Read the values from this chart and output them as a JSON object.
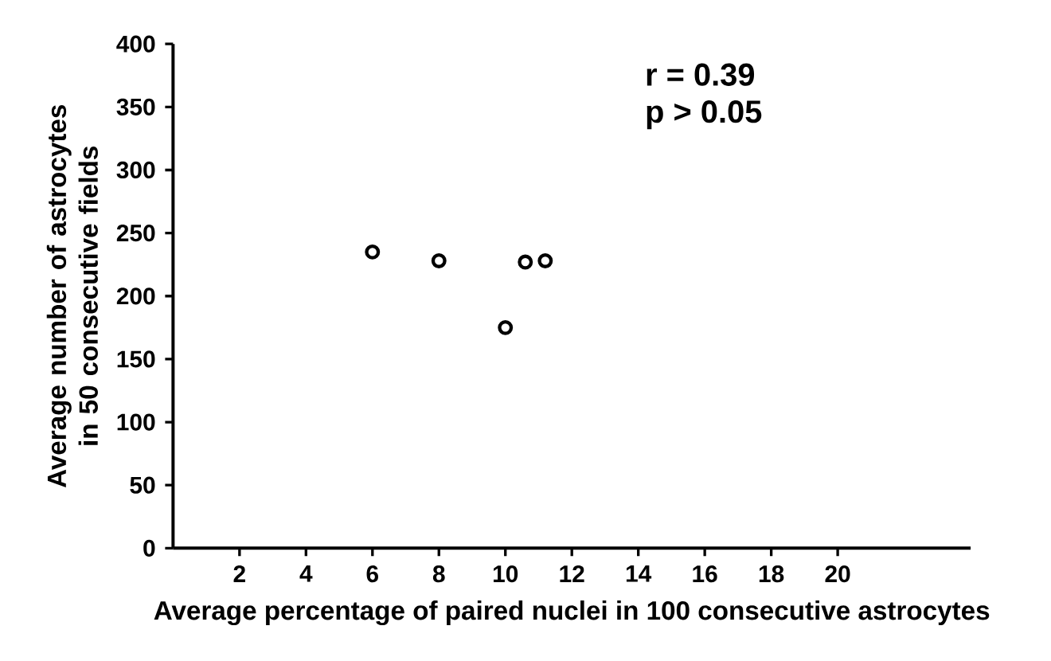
{
  "chart_data": {
    "type": "scatter",
    "xlabel": "Average percentage of paired nuclei in 100 consecutive astrocytes",
    "ylabel": "Average number of astrocytes in 50 consecutive fields",
    "x": [
      6,
      8,
      10,
      10.6,
      11.2
    ],
    "values": [
      235,
      228,
      175,
      227,
      228
    ],
    "color": "#000000",
    "marker": "circle",
    "xlim": [
      0,
      24
    ],
    "ylim": [
      0,
      400
    ],
    "xticks": [
      2,
      4,
      6,
      8,
      10,
      12,
      14,
      16,
      18,
      20
    ],
    "yticks": [
      0,
      50,
      100,
      150,
      200,
      250,
      300,
      350,
      400
    ],
    "annotations": [
      "r = 0.39",
      "p > 0.05"
    ],
    "grid": false
  }
}
